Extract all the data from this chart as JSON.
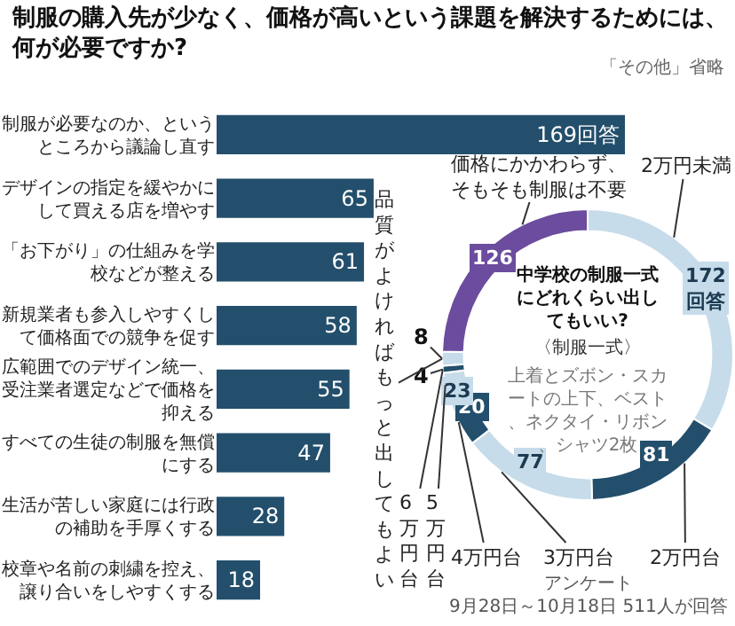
{
  "chart_data": [
    {
      "type": "bar",
      "orientation": "horizontal",
      "title": "制服の購入先が少なく、価格が高いという課題を解決するためには、何が必要ですか?",
      "annotations": [
        "「その他」省略",
        "アンケート",
        "9月28日～10月18日 511人が回答"
      ],
      "categories": [
        "制服が必要なのか、というところから議論し直す",
        "デザインの指定を緩やかにして買える店を増やす",
        "「お下がり」の仕組みを学校などが整える",
        "新規業者も参入しやすくして価格面での競争を促す",
        "広範囲でのデザイン統一、受注業者選定などで価格を抑える",
        "すべての生徒の制服を無償にする",
        "生活が苦しい家庭には行政の補助を手厚くする",
        "校章や名前の刺繍を控え、譲り合いをしやすくする"
      ],
      "values": [
        169,
        65,
        61,
        58,
        55,
        47,
        28,
        18
      ],
      "value_labels": [
        "169回答",
        "65",
        "61",
        "58",
        "55",
        "47",
        "28",
        "18"
      ],
      "color": "#234f6c"
    },
    {
      "type": "donut",
      "title": "中学校の制服一式にどれくらい出してもいい?",
      "subtitle": "〈制服一式〉",
      "annotations": [
        "上着とズボン・スカートの上下、ベスト、ネクタイ・リボン、シャツ2枚"
      ],
      "categories": [
        "2万円未満",
        "2万円台",
        "3万円台",
        "4万円台",
        "5万円台",
        "6万円台",
        "品質がよければもっと出してもよい",
        "価格にかかわらず、そもそも制服は不要"
      ],
      "values": [
        172,
        81,
        77,
        20,
        23,
        4,
        8,
        126
      ],
      "value_labels": [
        "172回答",
        "81",
        "77",
        "20",
        "23",
        "4",
        "8",
        "126"
      ],
      "colors": [
        "#c6dcea",
        "#234f6c",
        "#c6dcea",
        "#234f6c",
        "#c6dcea",
        "#234f6c",
        "#c6dcea",
        "#6b4c9e"
      ]
    }
  ]
}
